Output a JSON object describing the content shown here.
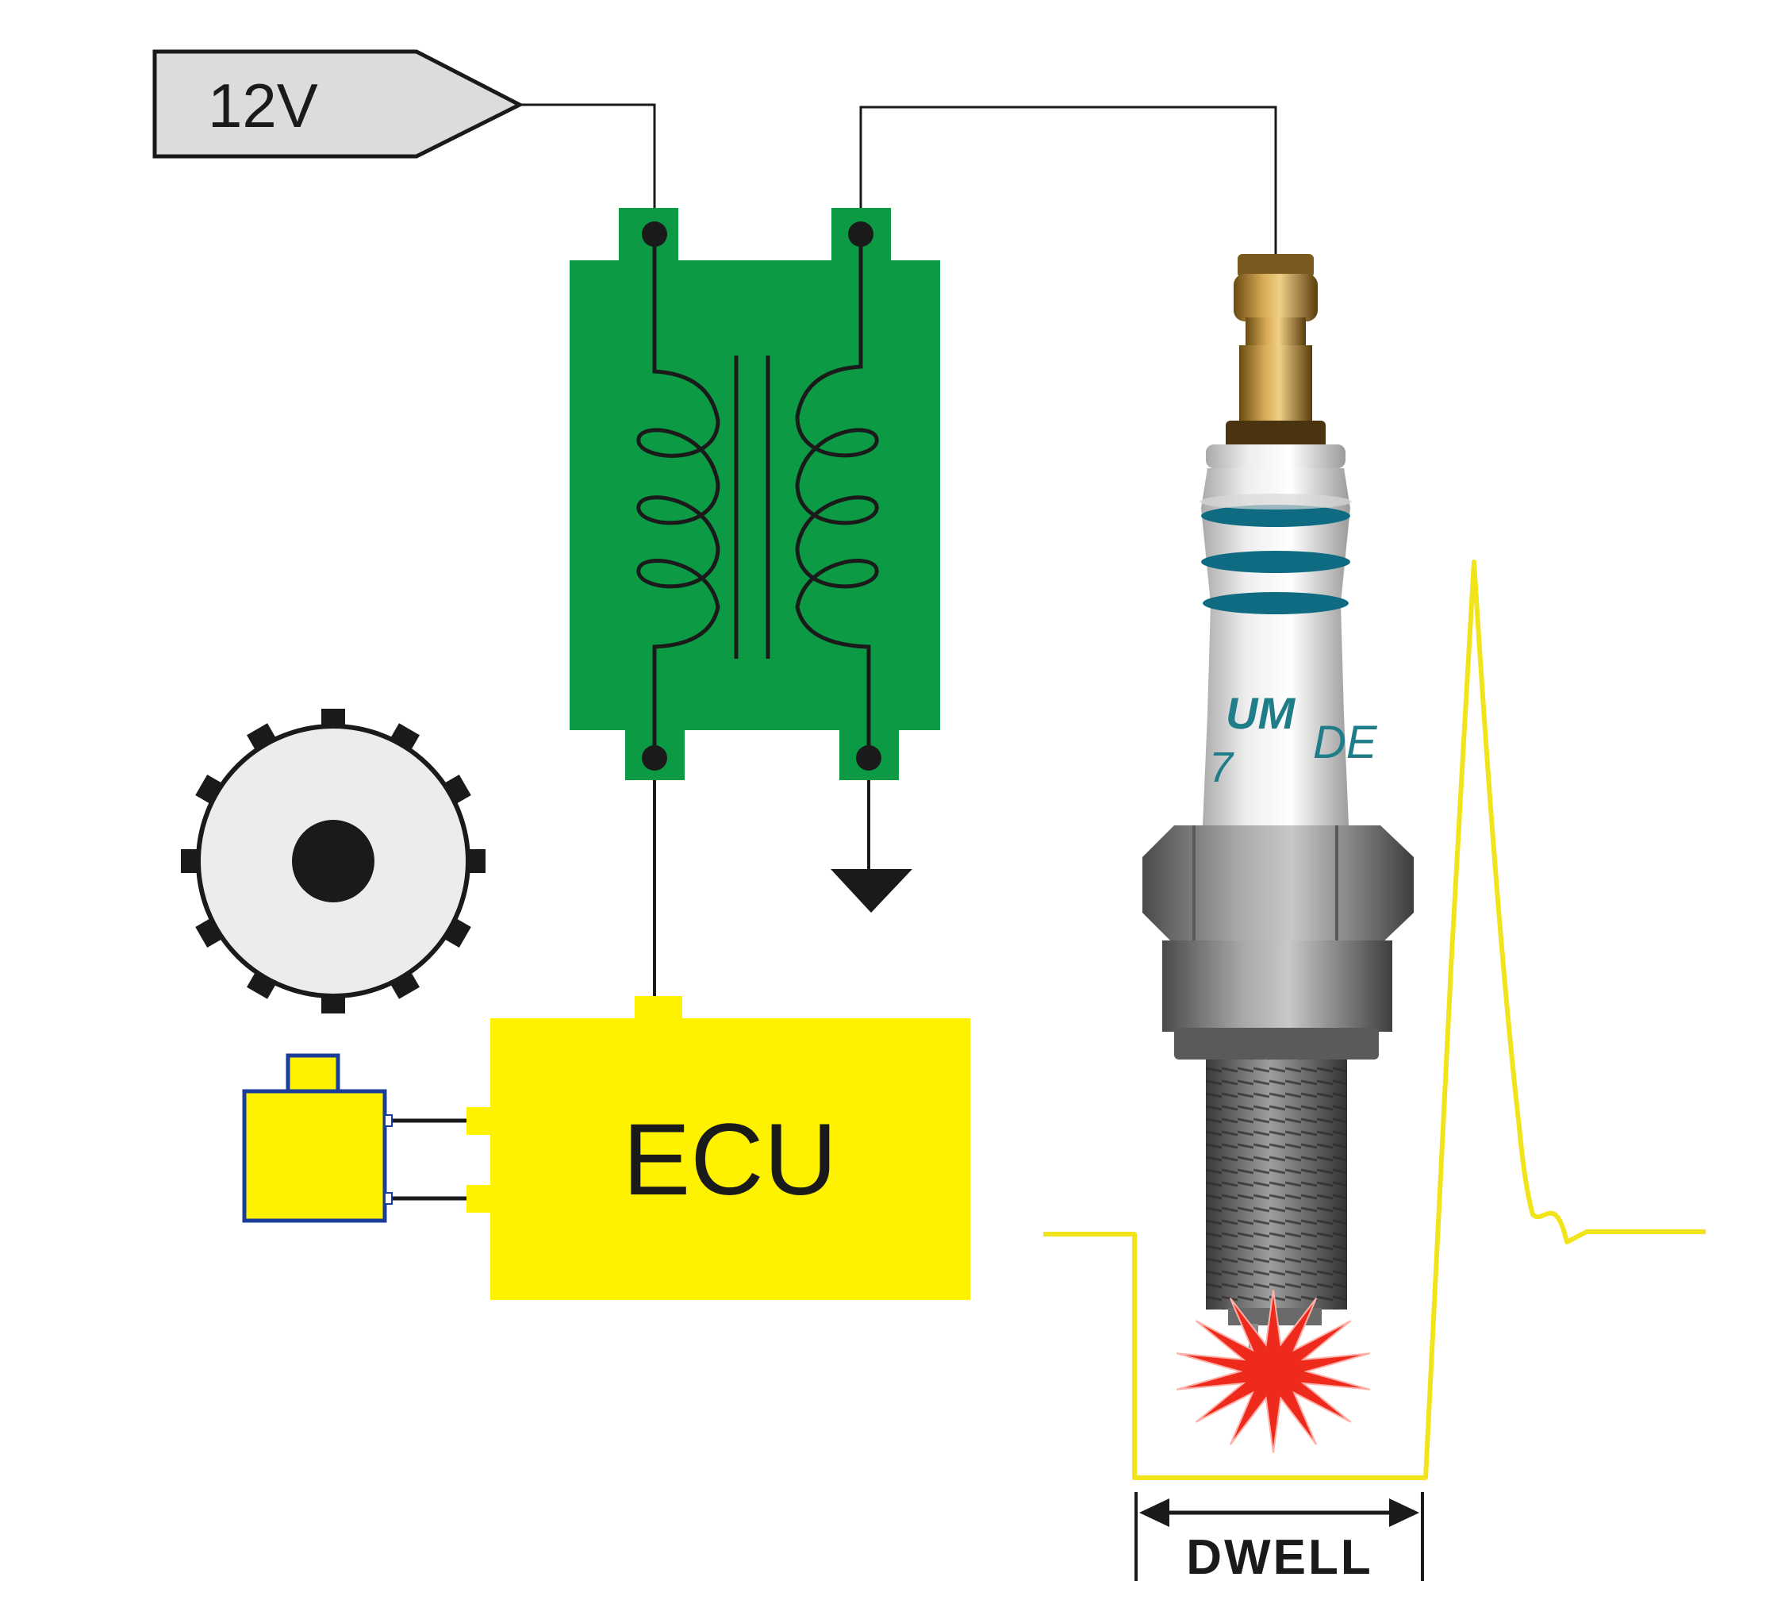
{
  "supply": {
    "label": "12V"
  },
  "ecu": {
    "label": "ECU"
  },
  "dwell": {
    "label": "DWELL"
  },
  "plug": {
    "brand_text_1": "UM",
    "brand_text_2": "DE",
    "model_text": "7"
  },
  "colors": {
    "coil": "#0c9a45",
    "ecu": "#fff200",
    "sensor_fill": "#fff200",
    "sensor_border": "#1a3d9c",
    "waveform": "#f2e41a",
    "supply_tag": "#dcdcdc",
    "spark": "#ee2a1c",
    "plug_ring": "#0f6b82"
  },
  "icons": [
    "supply-tag-icon",
    "ignition-coil-icon",
    "reluctor-wheel-icon",
    "crank-sensor-icon",
    "ground-symbol-icon",
    "spark-plug-icon",
    "spark-icon"
  ]
}
